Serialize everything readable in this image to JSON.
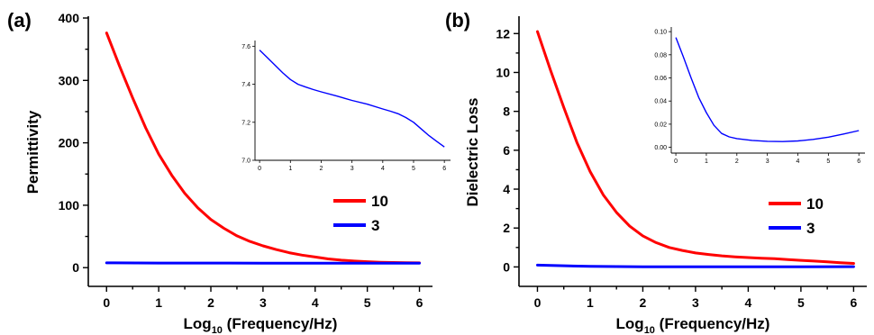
{
  "chart_data": [
    {
      "panel_label": "(a)",
      "type": "line",
      "xlabel": "Log",
      "xlabel_sub": "10",
      "xlabel_rest": " (Frequency/Hz)",
      "ylabel": "Permittivity",
      "xlim": [
        -0.35,
        6.25
      ],
      "ylim": [
        -30,
        400
      ],
      "xticks": [
        0,
        1,
        2,
        3,
        4,
        5,
        6
      ],
      "yticks": [
        0,
        100,
        200,
        300,
        400
      ],
      "legend": "right",
      "series": [
        {
          "name": "10",
          "color": "#ff0000",
          "x": [
            0,
            0.25,
            0.5,
            0.75,
            1,
            1.25,
            1.5,
            1.75,
            2,
            2.25,
            2.5,
            2.75,
            3,
            3.25,
            3.5,
            3.75,
            4,
            4.25,
            4.5,
            4.75,
            5,
            5.25,
            5.5,
            5.75,
            6
          ],
          "values": [
            376,
            323,
            272,
            224,
            182,
            148,
            119,
            96,
            77,
            63,
            51,
            42,
            35,
            29,
            24,
            20,
            17,
            14,
            12,
            10.5,
            9.5,
            8.7,
            8.2,
            7.8,
            7.6
          ]
        },
        {
          "name": "3",
          "color": "#0000ff",
          "x": [
            0,
            1,
            2,
            3,
            4,
            5,
            6
          ],
          "values": [
            7.6,
            7.4,
            7.35,
            7.3,
            7.25,
            7.2,
            7.1
          ]
        }
      ],
      "inset": {
        "series_name": "3",
        "xlim": [
          -0.15,
          6.2
        ],
        "ylim": [
          7.0,
          7.63
        ],
        "xticks": [
          0,
          1,
          2,
          3,
          4,
          5,
          6
        ],
        "yticks": [
          7.0,
          7.2,
          7.4,
          7.6
        ],
        "ytick_labels": [
          "7.0",
          "7.2",
          "7.4",
          "7.6"
        ],
        "x": [
          0,
          0.25,
          0.5,
          0.75,
          1,
          1.25,
          1.5,
          1.75,
          2,
          2.5,
          3,
          3.5,
          4,
          4.25,
          4.5,
          4.75,
          5,
          5.25,
          5.5,
          5.75,
          6
        ],
        "values": [
          7.58,
          7.54,
          7.5,
          7.46,
          7.425,
          7.4,
          7.385,
          7.372,
          7.36,
          7.338,
          7.315,
          7.295,
          7.27,
          7.258,
          7.245,
          7.225,
          7.2,
          7.165,
          7.13,
          7.1,
          7.07
        ]
      }
    },
    {
      "panel_label": "(b)",
      "type": "line",
      "xlabel": "Log",
      "xlabel_sub": "10",
      "xlabel_rest": " (Frequency/Hz)",
      "ylabel": "Dielectric Loss",
      "xlim": [
        -0.35,
        6.25
      ],
      "ylim": [
        -1,
        12.8
      ],
      "xticks": [
        0,
        1,
        2,
        3,
        4,
        5,
        6
      ],
      "yticks": [
        0,
        2,
        4,
        6,
        8,
        10,
        12
      ],
      "legend": "right",
      "series": [
        {
          "name": "10",
          "color": "#ff0000",
          "x": [
            0,
            0.25,
            0.5,
            0.75,
            1,
            1.25,
            1.5,
            1.75,
            2,
            2.25,
            2.5,
            2.75,
            3,
            3.25,
            3.5,
            3.75,
            4,
            4.25,
            4.5,
            4.75,
            5,
            5.25,
            5.5,
            5.75,
            6
          ],
          "values": [
            12.1,
            10.1,
            8.2,
            6.4,
            4.9,
            3.7,
            2.8,
            2.1,
            1.6,
            1.25,
            1.0,
            0.85,
            0.72,
            0.64,
            0.57,
            0.52,
            0.48,
            0.45,
            0.42,
            0.38,
            0.34,
            0.3,
            0.26,
            0.22,
            0.18
          ]
        },
        {
          "name": "3",
          "color": "#0000ff",
          "x": [
            0,
            1,
            2,
            3,
            4,
            5,
            6
          ],
          "values": [
            0.095,
            0.03,
            0.008,
            0.005,
            0.005,
            0.009,
            0.015
          ]
        }
      ],
      "inset": {
        "series_name": "3",
        "xlim": [
          -0.15,
          6.2
        ],
        "ylim": [
          -0.005,
          0.104
        ],
        "xticks": [
          0,
          1,
          2,
          3,
          4,
          5,
          6
        ],
        "yticks": [
          0,
          0.02,
          0.04,
          0.06,
          0.08,
          0.1
        ],
        "ytick_labels": [
          "0.00",
          "0.02",
          "0.04",
          "0.06",
          "0.08",
          "0.10"
        ],
        "x": [
          0,
          0.25,
          0.5,
          0.75,
          1,
          1.25,
          1.5,
          1.75,
          2,
          2.5,
          3,
          3.5,
          4,
          4.5,
          5,
          5.5,
          6
        ],
        "values": [
          0.095,
          0.078,
          0.06,
          0.043,
          0.03,
          0.019,
          0.012,
          0.009,
          0.0075,
          0.006,
          0.0052,
          0.005,
          0.0055,
          0.0068,
          0.0088,
          0.0115,
          0.0145
        ]
      }
    }
  ]
}
